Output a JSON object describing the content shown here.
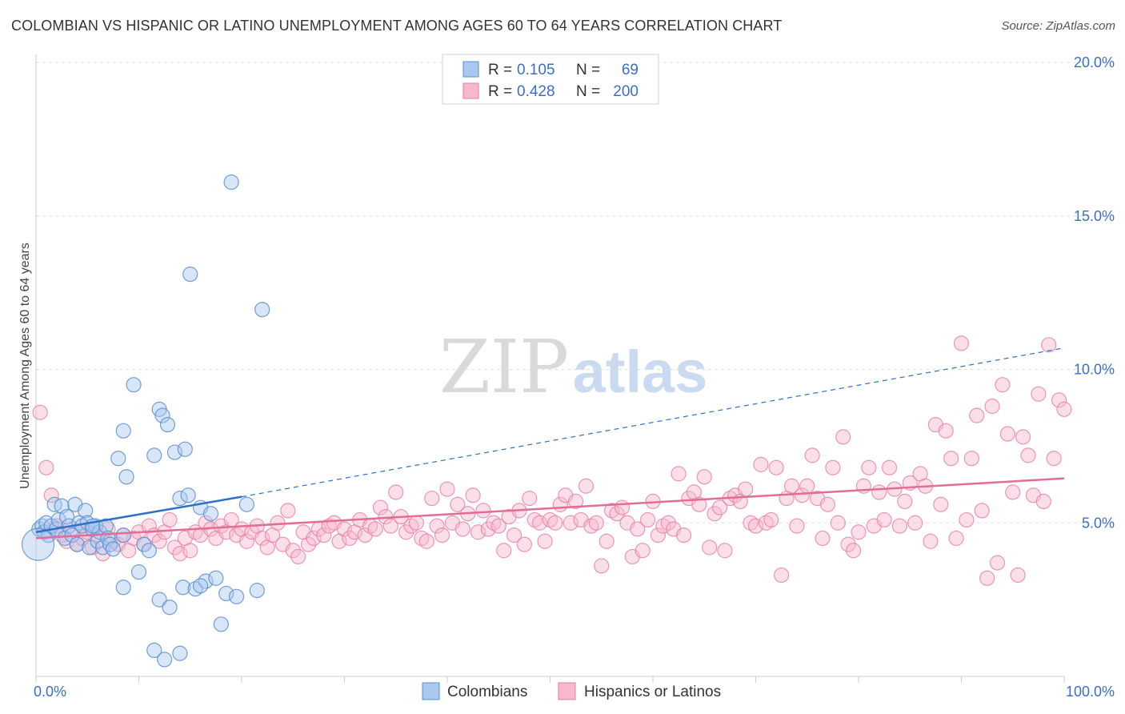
{
  "header": {
    "title": "COLOMBIAN VS HISPANIC OR LATINO UNEMPLOYMENT AMONG AGES 60 TO 64 YEARS CORRELATION CHART",
    "source": "Source: ZipAtlas.com"
  },
  "watermark": {
    "part1": "ZIP",
    "part2": "atlas"
  },
  "chart_data": {
    "type": "scatter",
    "title": "COLOMBIAN VS HISPANIC OR LATINO UNEMPLOYMENT AMONG AGES 60 TO 64 YEARS CORRELATION CHART",
    "xlabel": "",
    "ylabel": "Unemployment Among Ages 60 to 64 years",
    "xlim": [
      0,
      100
    ],
    "ylim": [
      0,
      20
    ],
    "x_tick_labels": [
      {
        "value": 0,
        "label": "0.0%"
      },
      {
        "value": 100,
        "label": "100.0%"
      }
    ],
    "y_tick_labels": [
      {
        "value": 5,
        "label": "5.0%"
      },
      {
        "value": 10,
        "label": "10.0%"
      },
      {
        "value": 15,
        "label": "15.0%"
      },
      {
        "value": 20,
        "label": "20.0%"
      }
    ],
    "grid": true,
    "legend_placement": "top-center",
    "stats": [
      {
        "r_label": "R =",
        "r_value": "0.105",
        "n_label": "N =",
        "n_value": "69"
      },
      {
        "r_label": "R =",
        "r_value": "0.428",
        "n_label": "N =",
        "n_value": "200"
      }
    ],
    "colors": {
      "colombians_fill": "#a9c8ef",
      "colombians_stroke": "#5b8fd0",
      "colombians_line": "#2f6fc9",
      "hispanics_fill": "#f6b8cc",
      "hispanics_stroke": "#e87ea0",
      "hispanics_line": "#e26d96",
      "stat_text": "#3b6fc4",
      "axis_label": "#3b6fc4"
    },
    "series": [
      {
        "name": "Colombians",
        "trend": {
          "x": [
            0,
            20
          ],
          "y": [
            4.7,
            5.85
          ],
          "dashed_extension_to": [
            100,
            10.7
          ]
        },
        "points": [
          [
            0.3,
            4.8
          ],
          [
            0.6,
            4.9
          ],
          [
            0.8,
            4.7
          ],
          [
            1.0,
            5.0
          ],
          [
            1.2,
            4.6
          ],
          [
            1.5,
            4.9
          ],
          [
            1.8,
            5.6
          ],
          [
            2.0,
            4.8
          ],
          [
            2.2,
            5.1
          ],
          [
            2.5,
            5.55
          ],
          [
            2.8,
            4.5
          ],
          [
            3.0,
            5.2
          ],
          [
            3.2,
            4.9
          ],
          [
            3.5,
            4.6
          ],
          [
            3.8,
            5.6
          ],
          [
            4.0,
            4.3
          ],
          [
            4.2,
            5.0
          ],
          [
            4.5,
            4.9
          ],
          [
            4.8,
            5.4
          ],
          [
            5.0,
            5.0
          ],
          [
            5.2,
            4.2
          ],
          [
            5.5,
            4.8
          ],
          [
            5.8,
            4.9
          ],
          [
            6.0,
            4.4
          ],
          [
            6.2,
            4.7
          ],
          [
            6.5,
            4.2
          ],
          [
            6.8,
            4.9
          ],
          [
            7.0,
            4.5
          ],
          [
            7.2,
            4.3
          ],
          [
            7.5,
            4.15
          ],
          [
            8.0,
            7.1
          ],
          [
            8.5,
            8.0
          ],
          [
            8.8,
            6.5
          ],
          [
            9.5,
            9.5
          ],
          [
            10.0,
            3.4
          ],
          [
            10.5,
            4.3
          ],
          [
            11.0,
            4.1
          ],
          [
            11.5,
            7.2
          ],
          [
            12.0,
            8.7
          ],
          [
            12.3,
            8.5
          ],
          [
            12.8,
            8.2
          ],
          [
            13.5,
            7.3
          ],
          [
            14.0,
            5.8
          ],
          [
            14.3,
            2.9
          ],
          [
            14.8,
            5.9
          ],
          [
            15.5,
            2.85
          ],
          [
            16.0,
            5.5
          ],
          [
            16.5,
            3.1
          ],
          [
            17.0,
            5.3
          ],
          [
            17.5,
            3.2
          ],
          [
            18.0,
            1.7
          ],
          [
            18.5,
            2.7
          ],
          [
            19.5,
            2.6
          ],
          [
            20.5,
            5.6
          ],
          [
            21.5,
            2.8
          ],
          [
            22.0,
            11.95
          ],
          [
            15.0,
            13.1
          ],
          [
            14.5,
            7.4
          ],
          [
            12.0,
            2.5
          ],
          [
            13.0,
            2.25
          ],
          [
            11.5,
            0.85
          ],
          [
            12.5,
            0.55
          ],
          [
            14.0,
            0.75
          ],
          [
            19.0,
            16.1
          ],
          [
            16.0,
            2.95
          ],
          [
            8.5,
            4.6
          ],
          [
            8.5,
            2.9
          ],
          [
            5.5,
            4.9
          ],
          [
            0.2,
            4.3
          ]
        ]
      },
      {
        "name": "Hispanics or Latinos",
        "trend": {
          "x": [
            0,
            100
          ],
          "y": [
            4.5,
            6.45
          ]
        },
        "points": [
          [
            0.4,
            8.6
          ],
          [
            1.0,
            6.8
          ],
          [
            1.5,
            5.9
          ],
          [
            2.0,
            4.9
          ],
          [
            2.5,
            4.6
          ],
          [
            3.0,
            4.4
          ],
          [
            3.5,
            4.8
          ],
          [
            4.0,
            4.3
          ],
          [
            4.5,
            4.5
          ],
          [
            5.0,
            4.7
          ],
          [
            5.5,
            4.2
          ],
          [
            6.0,
            4.6
          ],
          [
            6.5,
            4.0
          ],
          [
            7.0,
            4.8
          ],
          [
            7.5,
            4.4
          ],
          [
            8.0,
            4.3
          ],
          [
            8.5,
            4.6
          ],
          [
            9.0,
            4.1
          ],
          [
            9.5,
            4.5
          ],
          [
            10.0,
            4.7
          ],
          [
            10.5,
            4.3
          ],
          [
            11.0,
            4.9
          ],
          [
            11.5,
            4.6
          ],
          [
            12.0,
            4.4
          ],
          [
            12.5,
            4.7
          ],
          [
            13.0,
            5.1
          ],
          [
            13.5,
            4.2
          ],
          [
            14.0,
            4.0
          ],
          [
            14.5,
            4.5
          ],
          [
            15.0,
            4.1
          ],
          [
            15.5,
            4.7
          ],
          [
            16.0,
            4.6
          ],
          [
            16.5,
            5.0
          ],
          [
            17.0,
            4.8
          ],
          [
            17.5,
            4.5
          ],
          [
            18.0,
            4.9
          ],
          [
            18.5,
            4.7
          ],
          [
            19.0,
            5.1
          ],
          [
            19.5,
            4.6
          ],
          [
            20.0,
            4.8
          ],
          [
            20.5,
            4.4
          ],
          [
            21.0,
            4.7
          ],
          [
            21.5,
            4.9
          ],
          [
            22.0,
            4.5
          ],
          [
            22.5,
            4.2
          ],
          [
            23.0,
            4.6
          ],
          [
            23.5,
            5.0
          ],
          [
            24.0,
            4.3
          ],
          [
            24.5,
            5.4
          ],
          [
            25.0,
            4.1
          ],
          [
            25.5,
            3.9
          ],
          [
            26.0,
            4.7
          ],
          [
            26.5,
            4.3
          ],
          [
            27.0,
            4.5
          ],
          [
            27.5,
            4.8
          ],
          [
            28.0,
            4.6
          ],
          [
            28.5,
            4.9
          ],
          [
            29.0,
            5.0
          ],
          [
            29.5,
            4.4
          ],
          [
            30.0,
            4.8
          ],
          [
            30.5,
            4.5
          ],
          [
            31.0,
            4.7
          ],
          [
            31.5,
            5.1
          ],
          [
            32.0,
            4.6
          ],
          [
            32.5,
            4.9
          ],
          [
            33.0,
            4.8
          ],
          [
            33.5,
            5.5
          ],
          [
            34.0,
            5.2
          ],
          [
            34.5,
            4.9
          ],
          [
            35.0,
            6.0
          ],
          [
            35.5,
            5.2
          ],
          [
            36.0,
            4.7
          ],
          [
            36.5,
            4.9
          ],
          [
            37.0,
            5.0
          ],
          [
            37.5,
            4.5
          ],
          [
            38.0,
            4.4
          ],
          [
            38.5,
            5.8
          ],
          [
            39.0,
            4.9
          ],
          [
            39.5,
            4.6
          ],
          [
            40.0,
            6.1
          ],
          [
            40.5,
            5.0
          ],
          [
            41.0,
            5.6
          ],
          [
            41.5,
            4.8
          ],
          [
            42.0,
            5.3
          ],
          [
            42.5,
            5.9
          ],
          [
            43.0,
            4.7
          ],
          [
            43.5,
            5.4
          ],
          [
            44.0,
            4.8
          ],
          [
            44.5,
            5.0
          ],
          [
            45.0,
            4.9
          ],
          [
            45.5,
            4.1
          ],
          [
            46.0,
            5.2
          ],
          [
            46.5,
            4.6
          ],
          [
            47.0,
            5.4
          ],
          [
            47.5,
            4.3
          ],
          [
            48.0,
            5.8
          ],
          [
            48.5,
            5.1
          ],
          [
            49.0,
            5.0
          ],
          [
            49.5,
            4.4
          ],
          [
            50.0,
            5.1
          ],
          [
            50.5,
            5.0
          ],
          [
            51.0,
            5.6
          ],
          [
            51.5,
            5.9
          ],
          [
            52.0,
            5.0
          ],
          [
            52.5,
            5.7
          ],
          [
            53.0,
            5.1
          ],
          [
            53.5,
            6.2
          ],
          [
            54.0,
            4.9
          ],
          [
            54.5,
            5.0
          ],
          [
            55.0,
            3.6
          ],
          [
            55.5,
            4.4
          ],
          [
            56.0,
            5.4
          ],
          [
            56.5,
            5.3
          ],
          [
            57.0,
            5.5
          ],
          [
            57.5,
            5.0
          ],
          [
            58.0,
            3.9
          ],
          [
            58.5,
            4.8
          ],
          [
            59.0,
            4.1
          ],
          [
            59.5,
            5.1
          ],
          [
            60.0,
            5.7
          ],
          [
            60.5,
            4.6
          ],
          [
            61.0,
            4.9
          ],
          [
            61.5,
            5.0
          ],
          [
            62.0,
            4.8
          ],
          [
            62.5,
            6.6
          ],
          [
            63.0,
            4.6
          ],
          [
            63.5,
            5.8
          ],
          [
            64.0,
            6.0
          ],
          [
            64.5,
            5.6
          ],
          [
            65.0,
            6.5
          ],
          [
            65.5,
            4.2
          ],
          [
            66.0,
            5.3
          ],
          [
            66.5,
            5.5
          ],
          [
            67.0,
            4.1
          ],
          [
            67.5,
            5.8
          ],
          [
            68.0,
            5.9
          ],
          [
            68.5,
            5.7
          ],
          [
            69.0,
            6.1
          ],
          [
            69.5,
            5.0
          ],
          [
            70.0,
            4.9
          ],
          [
            70.5,
            6.9
          ],
          [
            71.0,
            5.0
          ],
          [
            71.5,
            5.1
          ],
          [
            72.0,
            6.8
          ],
          [
            72.5,
            3.3
          ],
          [
            73.0,
            5.8
          ],
          [
            73.5,
            6.2
          ],
          [
            74.0,
            4.9
          ],
          [
            74.5,
            5.9
          ],
          [
            75.0,
            6.2
          ],
          [
            75.5,
            7.2
          ],
          [
            76.0,
            5.8
          ],
          [
            76.5,
            4.5
          ],
          [
            77.0,
            5.6
          ],
          [
            77.5,
            6.8
          ],
          [
            78.0,
            5.0
          ],
          [
            78.5,
            7.8
          ],
          [
            79.0,
            4.3
          ],
          [
            79.5,
            4.1
          ],
          [
            80.0,
            4.7
          ],
          [
            80.5,
            6.2
          ],
          [
            81.0,
            6.8
          ],
          [
            81.5,
            4.9
          ],
          [
            82.0,
            6.0
          ],
          [
            82.5,
            5.1
          ],
          [
            83.0,
            6.8
          ],
          [
            83.5,
            6.1
          ],
          [
            84.0,
            4.9
          ],
          [
            84.5,
            5.7
          ],
          [
            85.0,
            6.3
          ],
          [
            85.5,
            5.0
          ],
          [
            86.0,
            6.6
          ],
          [
            86.5,
            6.2
          ],
          [
            87.0,
            4.4
          ],
          [
            87.5,
            8.2
          ],
          [
            88.0,
            5.6
          ],
          [
            88.5,
            8.0
          ],
          [
            89.0,
            7.1
          ],
          [
            89.5,
            4.5
          ],
          [
            90.0,
            10.85
          ],
          [
            90.5,
            5.1
          ],
          [
            91.0,
            7.1
          ],
          [
            91.5,
            8.5
          ],
          [
            92.0,
            5.4
          ],
          [
            92.5,
            3.2
          ],
          [
            93.0,
            8.8
          ],
          [
            93.5,
            3.7
          ],
          [
            94.0,
            9.5
          ],
          [
            94.5,
            7.9
          ],
          [
            95.0,
            6.0
          ],
          [
            95.5,
            3.3
          ],
          [
            96.0,
            7.8
          ],
          [
            96.5,
            7.2
          ],
          [
            97.0,
            5.9
          ],
          [
            97.5,
            9.2
          ],
          [
            98.0,
            5.7
          ],
          [
            98.5,
            10.8
          ],
          [
            99.0,
            7.1
          ],
          [
            99.5,
            9.0
          ],
          [
            100.0,
            8.7
          ]
        ]
      }
    ]
  },
  "legend": {
    "items": [
      {
        "label": "Colombians"
      },
      {
        "label": "Hispanics or Latinos"
      }
    ]
  }
}
